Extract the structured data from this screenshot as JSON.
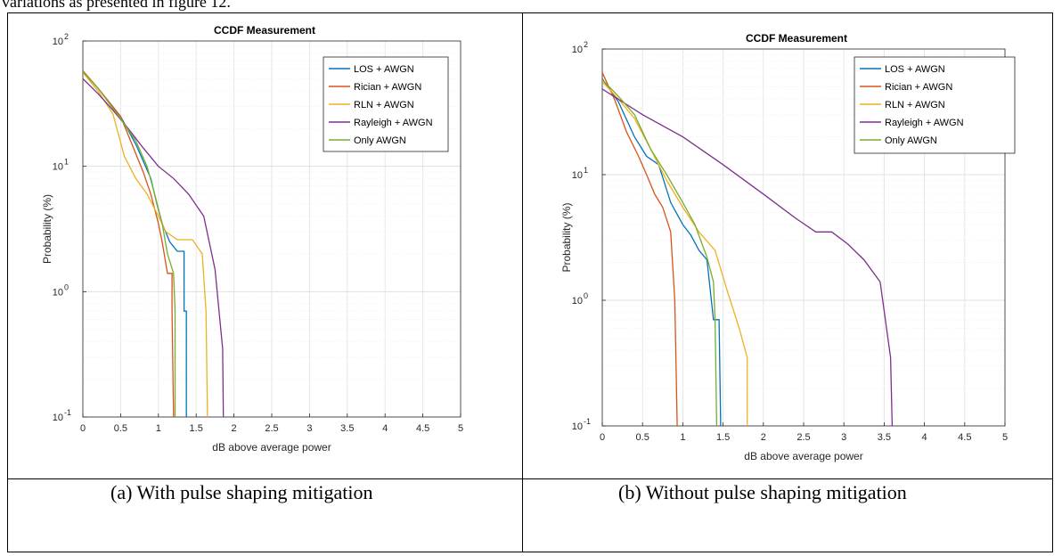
{
  "page": {
    "top_text": "variations as presented in figure 12.",
    "captions": [
      "(a)  With pulse shaping mitigation",
      "(b)  Without pulse shaping mitigation"
    ]
  },
  "colors": {
    "LOS + AWGN": "#0072BD",
    "Rician + AWGN": "#D95319",
    "RLN + AWGN": "#EDB120",
    "Rayleigh + AWGN": "#7E2F8E",
    "Only AWGN": "#77AC30"
  },
  "chart_data": [
    {
      "type": "line",
      "title": "CCDF Measurement",
      "xlabel": "dB above average power",
      "ylabel": "Probability (%)",
      "xlim": [
        0,
        5
      ],
      "ylim": [
        0.1,
        100
      ],
      "yscale": "log",
      "xticks": [
        "0",
        "0.5",
        "1",
        "1.5",
        "2",
        "2.5",
        "3",
        "3.5",
        "4",
        "4.5",
        "5"
      ],
      "yticks": [
        "10",
        "10",
        "10",
        "10"
      ],
      "ytick_exponents": [
        "-1",
        "0",
        "1",
        "2"
      ],
      "grid": true,
      "legend_position": "top-right",
      "series": [
        {
          "name": "LOS + AWGN",
          "x": [
            0,
            0.2,
            0.5,
            0.7,
            0.8,
            0.9,
            0.98,
            1.05,
            1.15,
            1.25,
            1.34,
            1.34,
            1.37,
            1.37
          ],
          "y": [
            57,
            42,
            25,
            15,
            11,
            8,
            5,
            3.5,
            2.5,
            2.1,
            2.1,
            0.7,
            0.7,
            0.1
          ]
        },
        {
          "name": "Rician + AWGN",
          "x": [
            0,
            0.2,
            0.5,
            0.65,
            0.8,
            0.9,
            1.0,
            1.05,
            1.12,
            1.18,
            1.18,
            1.2
          ],
          "y": [
            58,
            42,
            25,
            15,
            9,
            6,
            3.5,
            2.5,
            1.4,
            1.4,
            0.7,
            0.1
          ]
        },
        {
          "name": "RLN + AWGN",
          "x": [
            0,
            0.2,
            0.4,
            0.55,
            0.7,
            0.85,
            1.0,
            1.1,
            1.25,
            1.45,
            1.58,
            1.63,
            1.65
          ],
          "y": [
            56,
            40,
            26,
            12,
            8,
            6,
            4,
            3,
            2.6,
            2.6,
            2,
            0.7,
            0.1
          ]
        },
        {
          "name": "Rayleigh + AWGN",
          "x": [
            0,
            0.2,
            0.4,
            0.6,
            0.8,
            1.0,
            1.2,
            1.4,
            1.6,
            1.75,
            1.85,
            1.86
          ],
          "y": [
            50,
            38,
            28,
            20,
            14,
            10,
            8,
            6,
            4,
            1.5,
            0.35,
            0.1
          ]
        },
        {
          "name": "Only AWGN",
          "x": [
            0,
            0.2,
            0.5,
            0.7,
            0.85,
            0.95,
            1.05,
            1.12,
            1.2,
            1.22,
            1.22
          ],
          "y": [
            57,
            42,
            24,
            16,
            10,
            6,
            3.5,
            2,
            1.4,
            0.7,
            0.1
          ]
        }
      ]
    },
    {
      "type": "line",
      "title": "CCDF Measurement",
      "xlabel": "dB above average power",
      "ylabel": "Probability (%)",
      "xlim": [
        0,
        5
      ],
      "ylim": [
        0.1,
        100
      ],
      "yscale": "log",
      "xticks": [
        "0",
        "0.5",
        "1",
        "1.5",
        "2",
        "2.5",
        "3",
        "3.5",
        "4",
        "4.5",
        "5"
      ],
      "yticks": [
        "10",
        "10",
        "10",
        "10"
      ],
      "ytick_exponents": [
        "-1",
        "0",
        "1",
        "2"
      ],
      "grid": true,
      "legend_position": "top-right",
      "series": [
        {
          "name": "LOS + AWGN",
          "x": [
            0,
            0.2,
            0.4,
            0.55,
            0.7,
            0.85,
            1.0,
            1.1,
            1.2,
            1.3,
            1.38,
            1.45,
            1.47
          ],
          "y": [
            58,
            38,
            20,
            14,
            12,
            6,
            4,
            3.3,
            2.5,
            2.1,
            0.7,
            0.7,
            0.1
          ]
        },
        {
          "name": "Rician + AWGN",
          "x": [
            0,
            0.15,
            0.3,
            0.45,
            0.55,
            0.65,
            0.75,
            0.85,
            0.9,
            0.93
          ],
          "y": [
            65,
            40,
            22,
            14,
            10,
            7,
            5.5,
            3.5,
            1.0,
            0.1
          ]
        },
        {
          "name": "RLN + AWGN",
          "x": [
            0,
            0.2,
            0.4,
            0.6,
            0.8,
            1.0,
            1.2,
            1.4,
            1.55,
            1.7,
            1.8,
            1.8
          ],
          "y": [
            55,
            40,
            28,
            16,
            9,
            5.5,
            3.5,
            2.5,
            1.2,
            0.6,
            0.35,
            0.1
          ]
        },
        {
          "name": "Rayleigh + AWGN",
          "x": [
            0,
            0.5,
            1.0,
            1.5,
            2.0,
            2.4,
            2.65,
            2.85,
            3.05,
            3.25,
            3.45,
            3.58,
            3.6
          ],
          "y": [
            48,
            30,
            20,
            12,
            7,
            4.5,
            3.5,
            3.5,
            2.8,
            2.1,
            1.4,
            0.35,
            0.1
          ]
        },
        {
          "name": "Only AWGN",
          "x": [
            0,
            0.2,
            0.4,
            0.6,
            0.8,
            1.0,
            1.15,
            1.3,
            1.38,
            1.4,
            1.42
          ],
          "y": [
            57,
            42,
            30,
            16,
            10,
            6,
            4,
            2.2,
            1.4,
            0.7,
            0.1
          ]
        }
      ]
    }
  ]
}
